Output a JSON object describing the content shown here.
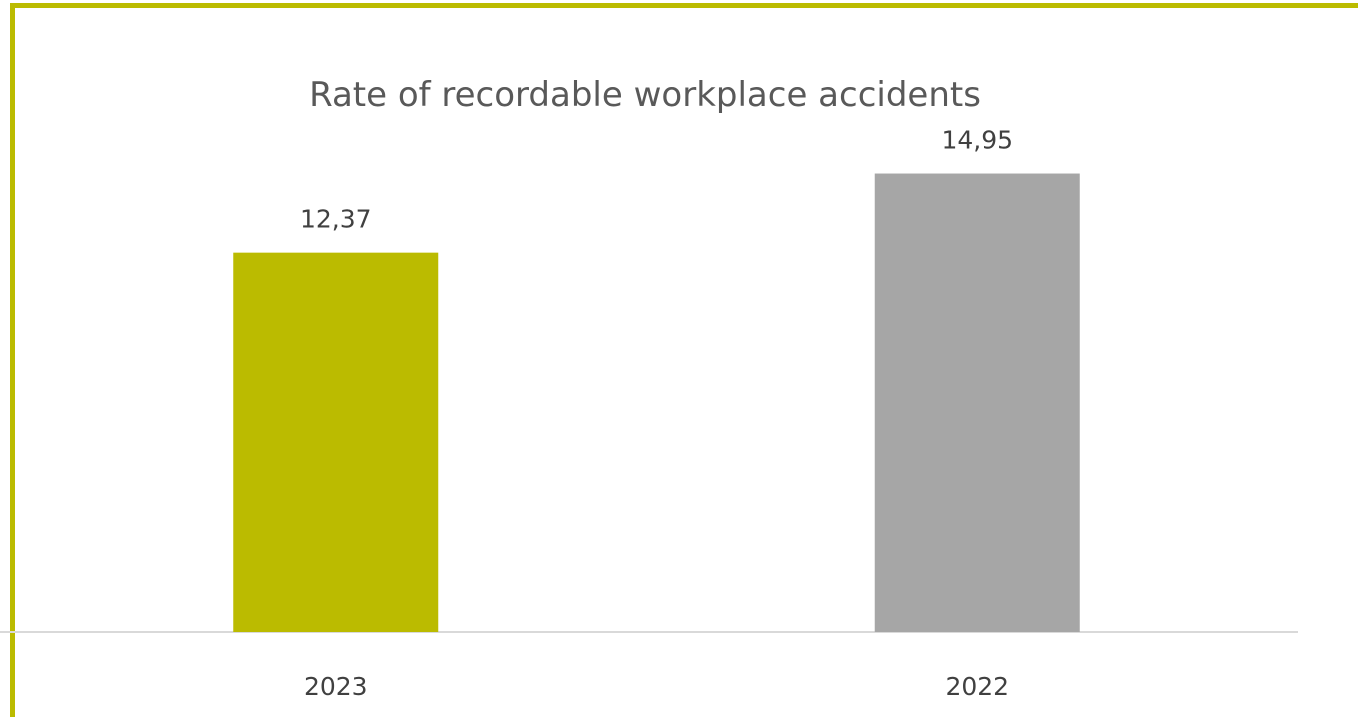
{
  "chart_data": {
    "type": "bar",
    "title": "Rate of recordable workplace accidents",
    "categories": [
      "2023",
      "2022"
    ],
    "values": [
      12.37,
      14.95
    ],
    "data_labels": [
      "12,37",
      "14,95"
    ],
    "bar_colors": [
      "#bbbb00",
      "#a6a6a6"
    ],
    "ylim": [
      0,
      15
    ],
    "grid": false,
    "legend": "none",
    "xlabel": "",
    "ylabel": ""
  },
  "frame": {
    "border_color": "#bbbb00",
    "axis_color": "#d9d9d9"
  }
}
